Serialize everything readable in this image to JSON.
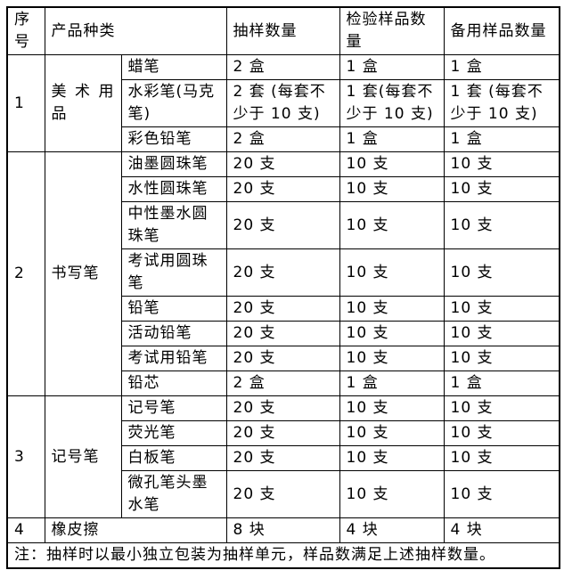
{
  "table": {
    "headers": [
      "序号",
      "产品种类",
      "抽样数量",
      "检验样品数量",
      "备用样品数量"
    ],
    "groups": [
      {
        "no": "1",
        "category": "美术用品",
        "items": [
          {
            "name": "蜡笔",
            "sample": "2 盒",
            "inspect": "1 盒",
            "spare": "1 盒"
          },
          {
            "name": "水彩笔(马克笔)",
            "sample": "2 套 (每套不少于 10 支)",
            "inspect": "1 套(每套不少于 10 支)",
            "spare": "1 套 (每套不少于 10 支)"
          },
          {
            "name": "彩色铅笔",
            "sample": "2 盒",
            "inspect": "1 盒",
            "spare": "1 盒"
          }
        ]
      },
      {
        "no": "2",
        "category": "书写笔",
        "items": [
          {
            "name": "油墨圆珠笔",
            "sample": "20 支",
            "inspect": "10 支",
            "spare": "10 支"
          },
          {
            "name": "水性圆珠笔",
            "sample": "20 支",
            "inspect": "10 支",
            "spare": "10 支"
          },
          {
            "name": "中性墨水圆珠笔",
            "sample": "20 支",
            "inspect": "10 支",
            "spare": "10 支"
          },
          {
            "name": "考试用圆珠笔",
            "sample": "20 支",
            "inspect": "10 支",
            "spare": "10 支"
          },
          {
            "name": "铅笔",
            "sample": "20 支",
            "inspect": "10 支",
            "spare": "10 支"
          },
          {
            "name": "活动铅笔",
            "sample": "20 支",
            "inspect": "10 支",
            "spare": "10 支"
          },
          {
            "name": "考试用铅笔",
            "sample": "20 支",
            "inspect": "10 支",
            "spare": "10 支"
          },
          {
            "name": "铅芯",
            "sample": "2 盒",
            "inspect": "1 盒",
            "spare": "1 盒"
          }
        ]
      },
      {
        "no": "3",
        "category": "记号笔",
        "items": [
          {
            "name": "记号笔",
            "sample": "20 支",
            "inspect": "10 支",
            "spare": "10 支"
          },
          {
            "name": "荧光笔",
            "sample": "20 支",
            "inspect": "10 支",
            "spare": "10 支"
          },
          {
            "name": "白板笔",
            "sample": "20 支",
            "inspect": "10 支",
            "spare": "10 支"
          },
          {
            "name": "微孔笔头墨水笔",
            "sample": "20 支",
            "inspect": "10 支",
            "spare": "10 支"
          }
        ]
      },
      {
        "no": "4",
        "category": "橡皮擦",
        "items": [
          {
            "name": null,
            "sample": "8 块",
            "inspect": "4 块",
            "spare": "4 块"
          }
        ]
      }
    ],
    "note": "注：抽样时以最小独立包装为抽样单元，样品数满足上述抽样数量。"
  }
}
